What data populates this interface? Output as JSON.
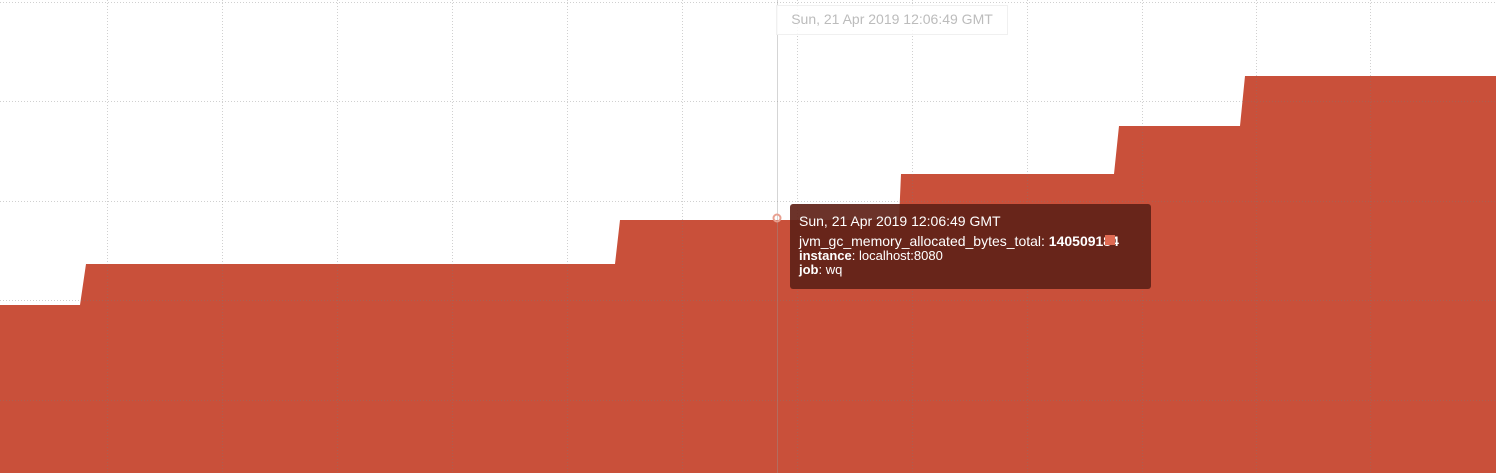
{
  "hover_time": "Sun, 21 Apr 2019 12:06:49 GMT",
  "tooltip": {
    "time": "Sun, 21 Apr 2019 12:06:49 GMT",
    "metric": "jvm_gc_memory_allocated_bytes_total",
    "value": "140509184",
    "labels": [
      {
        "key": "instance",
        "value": "localhost:8080"
      },
      {
        "key": "job",
        "value": "wq"
      }
    ]
  }
}
